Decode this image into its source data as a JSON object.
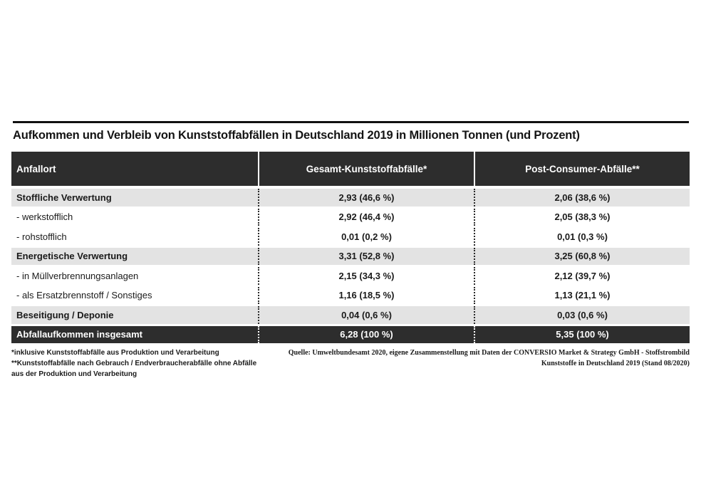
{
  "chart_data": {
    "type": "table",
    "title": "Aufkommen und Verbleib von Kunststoffabfällen in Deutschland 2019 in Millionen Tonnen (und Prozent)",
    "columns": [
      "Anfallort",
      "Gesamt-Kunststoffabfälle*",
      "Post-Consumer-Abfälle**"
    ],
    "rows": [
      [
        "Stoffliche Verwertung",
        "2,93 (46,6 %)",
        "2,06 (38,6 %)"
      ],
      [
        "- werkstofflich",
        "2,92 (46,4 %)",
        "2,05 (38,3 %)"
      ],
      [
        "- rohstofflich",
        "0,01 (0,2 %)",
        "0,01 (0,3 %)"
      ],
      [
        "Energetische Verwertung",
        "3,31 (52,8 %)",
        "3,25 (60,8 %)"
      ],
      [
        "- in Müllverbrennungsanlagen",
        "2,15 (34,3 %)",
        "2,12 (39,7 %)"
      ],
      [
        "- als Ersatzbrennstoff / Sonstiges",
        "1,16 (18,5 %)",
        "1,13 (21,1 %)"
      ],
      [
        "Beseitigung / Deponie",
        "0,04 (0,6 %)",
        "0,03 (0,6 %)"
      ],
      [
        "Abfallaufkommen insgesamt",
        "6,28 (100 %)",
        "5,35 (100 %)"
      ]
    ],
    "row_styles": [
      "category",
      "sub",
      "sub",
      "category",
      "sub",
      "sub",
      "category",
      "total"
    ],
    "units": "Millionen Tonnen (und Prozent)",
    "values_numeric": {
      "gesamt_mio_t": [
        2.93,
        2.92,
        0.01,
        3.31,
        2.15,
        1.16,
        0.04,
        6.28
      ],
      "gesamt_prozent": [
        46.6,
        46.4,
        0.2,
        52.8,
        34.3,
        18.5,
        0.6,
        100
      ],
      "post_consumer_mio_t": [
        2.06,
        2.05,
        0.01,
        3.25,
        2.12,
        1.13,
        0.03,
        5.35
      ],
      "post_consumer_prozent": [
        38.6,
        38.3,
        0.3,
        60.8,
        39.7,
        21.1,
        0.6,
        100
      ]
    }
  },
  "footnotes": {
    "note1": "*inklusive Kunststoffabfälle aus Produktion und Verarbeitung",
    "note2": "**Kunststoffabfälle nach Gebrauch / Endverbraucherabfälle ohne Abfälle aus der Produktion und Verarbeitung",
    "source": "Quelle: Umweltbundesamt 2020, eigene Zusammenstellung mit Daten der CONVERSIO Market & Strategy GmbH - Stoffstrombild Kunststoffe in Deutschland 2019 (Stand 08/2020)"
  },
  "colors": {
    "header_bg": "#2d2d2d",
    "category_row_bg": "#e3e3e3",
    "total_row_bg": "#2d2d2d",
    "text": "#1a1a1a"
  }
}
